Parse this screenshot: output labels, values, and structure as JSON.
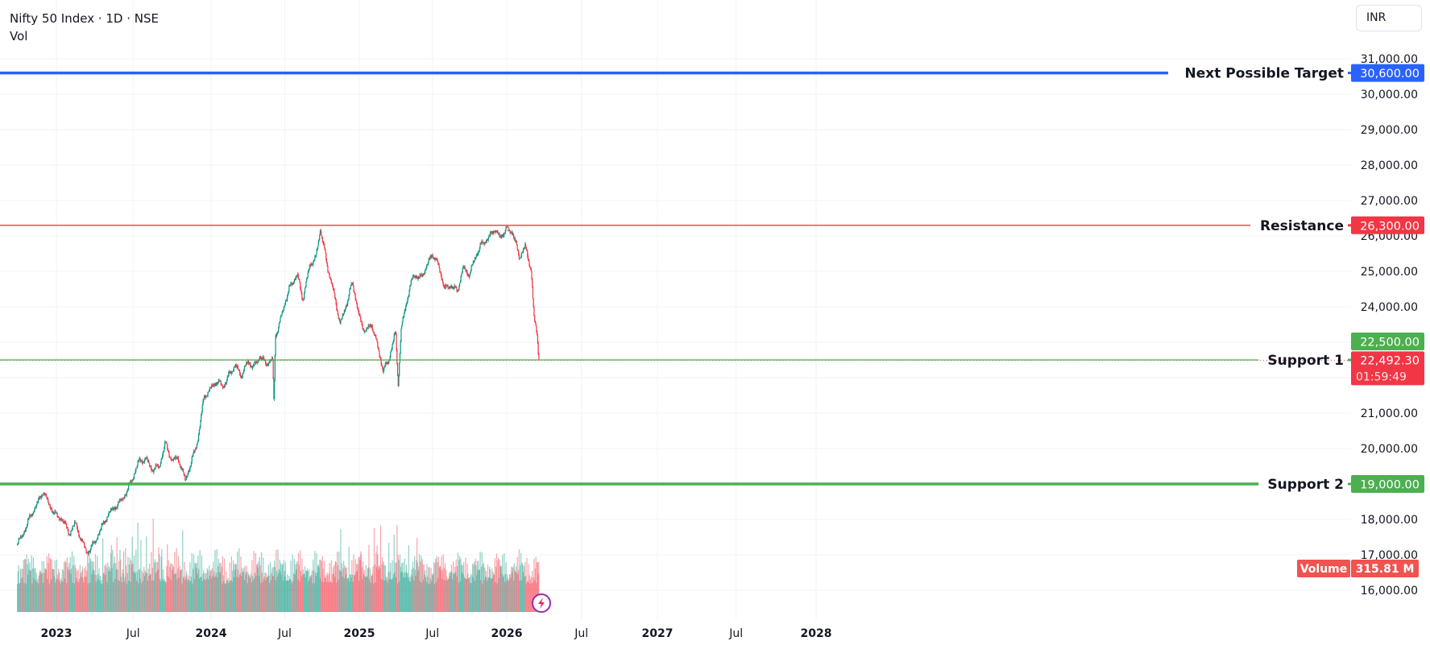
{
  "legend": {
    "symbol_line": "Nifty 50 Index · 1D · NSE",
    "volume_label": "Vol"
  },
  "currency_button": "INR",
  "chart_data": {
    "type": "candlestick",
    "symbol": "Nifty 50 Index",
    "interval": "1D",
    "exchange": "NSE",
    "ylim": [
      15500,
      31500
    ],
    "y_ticks": [
      31000,
      30000,
      29000,
      28000,
      27000,
      26000,
      25000,
      24000,
      21000,
      20000,
      18000,
      17000,
      16000
    ],
    "y_tick_labels": [
      "31,000.00",
      "30,000.00",
      "29,000.00",
      "28,000.00",
      "27,000.00",
      "26,000.00",
      "25,000.00",
      "24,000.00",
      "21,000.00",
      "20,000.00",
      "18,000.00",
      "17,000.00",
      "16,000.00"
    ],
    "x_ticks": [
      {
        "date": "2023-01-01",
        "label": "2023"
      },
      {
        "date": "2023-07-01",
        "label": "Jul"
      },
      {
        "date": "2024-01-01",
        "label": "2024"
      },
      {
        "date": "2024-07-01",
        "label": "Jul"
      },
      {
        "date": "2025-01-01",
        "label": "2025"
      },
      {
        "date": "2025-07-01",
        "label": "Jul"
      },
      {
        "date": "2026-01-01",
        "label": "2026"
      },
      {
        "date": "2026-07-01",
        "label": "Jul"
      },
      {
        "date": "2027-01-01",
        "label": "2027"
      },
      {
        "date": "2027-07-01",
        "label": "Jul"
      },
      {
        "date": "2028-01-01",
        "label": "2028"
      }
    ],
    "grid": true,
    "colors": {
      "up": "#089981",
      "down": "#f23645"
    },
    "close_series": [
      [
        "2022-10-01",
        17300
      ],
      [
        "2022-10-15",
        17600
      ],
      [
        "2022-11-01",
        18100
      ],
      [
        "2022-11-15",
        18400
      ],
      [
        "2022-12-01",
        18800
      ],
      [
        "2022-12-15",
        18400
      ],
      [
        "2023-01-01",
        18100
      ],
      [
        "2023-01-15",
        18000
      ],
      [
        "2023-02-01",
        17600
      ],
      [
        "2023-02-15",
        17900
      ],
      [
        "2023-03-01",
        17400
      ],
      [
        "2023-03-15",
        17050
      ],
      [
        "2023-04-01",
        17350
      ],
      [
        "2023-04-15",
        17700
      ],
      [
        "2023-05-01",
        18100
      ],
      [
        "2023-05-15",
        18300
      ],
      [
        "2023-06-01",
        18500
      ],
      [
        "2023-06-15",
        18750
      ],
      [
        "2023-07-01",
        19200
      ],
      [
        "2023-07-15",
        19650
      ],
      [
        "2023-08-01",
        19700
      ],
      [
        "2023-08-15",
        19400
      ],
      [
        "2023-09-01",
        19500
      ],
      [
        "2023-09-15",
        20150
      ],
      [
        "2023-10-01",
        19650
      ],
      [
        "2023-10-15",
        19750
      ],
      [
        "2023-11-01",
        19100
      ],
      [
        "2023-11-15",
        19600
      ],
      [
        "2023-12-01",
        20250
      ],
      [
        "2023-12-15",
        21450
      ],
      [
        "2024-01-01",
        21700
      ],
      [
        "2024-01-15",
        21900
      ],
      [
        "2024-02-01",
        21750
      ],
      [
        "2024-02-15",
        22100
      ],
      [
        "2024-03-01",
        22350
      ],
      [
        "2024-03-15",
        22050
      ],
      [
        "2024-04-01",
        22450
      ],
      [
        "2024-04-15",
        22300
      ],
      [
        "2024-05-01",
        22600
      ],
      [
        "2024-05-15",
        22400
      ],
      [
        "2024-06-01",
        22500
      ],
      [
        "2024-06-04",
        21300
      ],
      [
        "2024-06-08",
        23200
      ],
      [
        "2024-06-15",
        23400
      ],
      [
        "2024-07-01",
        24100
      ],
      [
        "2024-07-15",
        24600
      ],
      [
        "2024-08-01",
        24900
      ],
      [
        "2024-08-15",
        24200
      ],
      [
        "2024-09-01",
        25200
      ],
      [
        "2024-09-15",
        25350
      ],
      [
        "2024-09-27",
        26200
      ],
      [
        "2024-10-15",
        25100
      ],
      [
        "2024-11-01",
        24300
      ],
      [
        "2024-11-15",
        23500
      ],
      [
        "2024-12-01",
        24100
      ],
      [
        "2024-12-15",
        24700
      ],
      [
        "2025-01-01",
        23700
      ],
      [
        "2025-01-15",
        23300
      ],
      [
        "2025-02-01",
        23500
      ],
      [
        "2025-02-15",
        22900
      ],
      [
        "2025-03-01",
        22200
      ],
      [
        "2025-03-15",
        22500
      ],
      [
        "2025-04-01",
        23300
      ],
      [
        "2025-04-07",
        21800
      ],
      [
        "2025-04-15",
        23400
      ],
      [
        "2025-05-01",
        24300
      ],
      [
        "2025-05-15",
        24900
      ],
      [
        "2025-06-01",
        24800
      ],
      [
        "2025-06-15",
        25100
      ],
      [
        "2025-07-01",
        25500
      ],
      [
        "2025-07-15",
        25200
      ],
      [
        "2025-08-01",
        24500
      ],
      [
        "2025-08-15",
        24600
      ],
      [
        "2025-09-01",
        24450
      ],
      [
        "2025-09-15",
        25100
      ],
      [
        "2025-10-01",
        24900
      ],
      [
        "2025-10-15",
        25400
      ],
      [
        "2025-11-01",
        25800
      ],
      [
        "2025-11-15",
        25900
      ],
      [
        "2025-12-01",
        26200
      ],
      [
        "2025-12-15",
        25950
      ],
      [
        "2026-01-01",
        26200
      ],
      [
        "2026-01-15",
        26100
      ],
      [
        "2026-02-01",
        25400
      ],
      [
        "2026-02-15",
        25700
      ],
      [
        "2026-03-01",
        25050
      ],
      [
        "2026-03-08",
        23700
      ],
      [
        "2026-03-15",
        23300
      ],
      [
        "2026-03-20",
        22492.3
      ]
    ],
    "last_price": {
      "value": 22492.3,
      "label": "22,492.30",
      "countdown": "01:59:49",
      "color": "#f23645"
    },
    "volume": {
      "label": "Volume",
      "last_value": "315.81 M",
      "color": "#f05350"
    },
    "horizontal_lines": [
      {
        "name": "Next Possible Target",
        "price": 30600,
        "price_label": "30,600.00",
        "color": "#2962ff",
        "weight": "thick"
      },
      {
        "name": "Resistance",
        "price": 26300,
        "price_label": "26,300.00",
        "color": "#f23645",
        "weight": "thin"
      },
      {
        "name": "Support 1",
        "price": 22500,
        "price_label": "22,500.00",
        "color": "#4caf50",
        "weight": "thin"
      },
      {
        "name": "Support 2",
        "price": 19000,
        "price_label": "19,000.00",
        "color": "#4caf50",
        "weight": "thick"
      }
    ]
  }
}
